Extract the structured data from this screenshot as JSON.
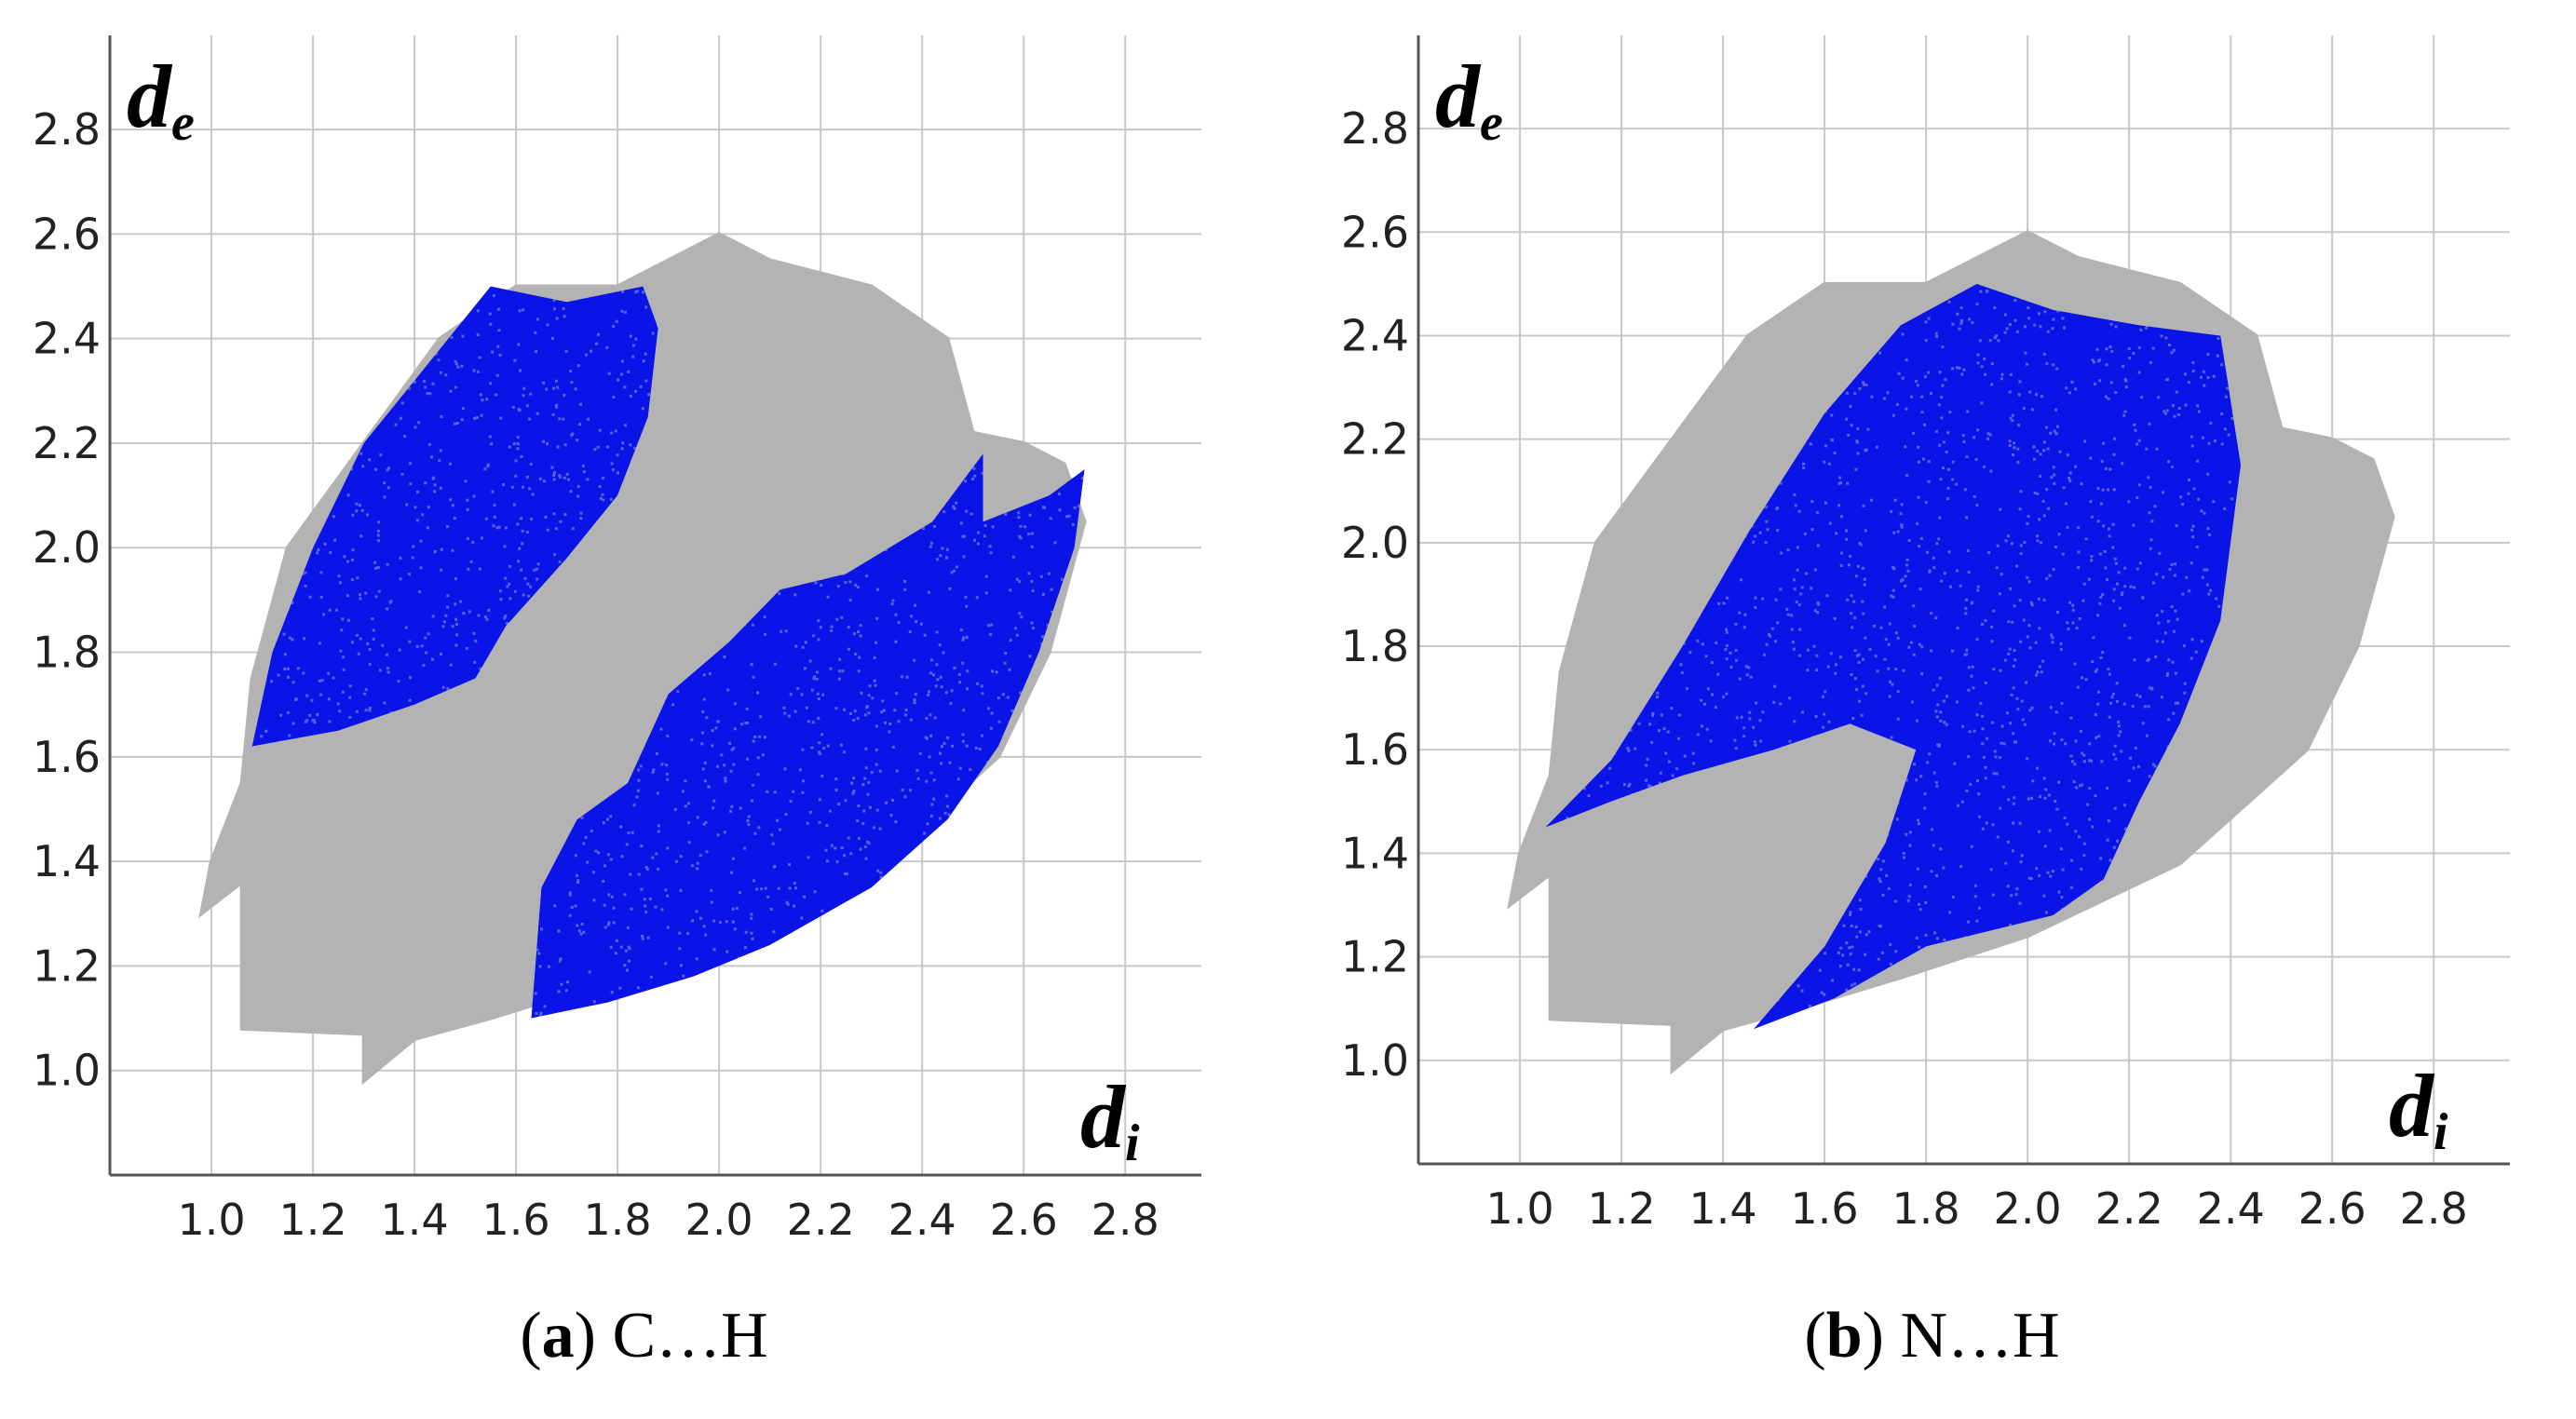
{
  "chart_data": [
    {
      "type": "heatmap",
      "panel_label": "a",
      "title": "C…H",
      "xlabel": "d",
      "xlabel_sub": "i",
      "ylabel": "d",
      "ylabel_sub": "e",
      "xlim": [
        0.8,
        2.95
      ],
      "ylim": [
        0.8,
        2.98
      ],
      "grid": true,
      "x_ticks": [
        1.0,
        1.2,
        1.4,
        1.6,
        1.8,
        2.0,
        2.2,
        2.4,
        2.6,
        2.8
      ],
      "y_ticks": [
        1.0,
        1.2,
        1.4,
        1.6,
        1.8,
        2.0,
        2.2,
        2.4,
        2.6,
        2.8
      ],
      "x_tick_labels": [
        "1.0",
        "1.2",
        "1.4",
        "1.6",
        "1.8",
        "2.0",
        "2.2",
        "2.4",
        "2.6",
        "2.8"
      ],
      "y_tick_labels": [
        "1.0",
        "1.2",
        "1.4",
        "1.6",
        "1.8",
        "2.0",
        "2.2",
        "2.4",
        "2.6",
        "2.8"
      ],
      "colors": {
        "full": "#b3b3b3",
        "highlight": "#0a14e6"
      },
      "full_region": [
        [
          0.98,
          1.3
        ],
        [
          1.06,
          1.36
        ],
        [
          1.06,
          1.08
        ],
        [
          1.3,
          1.07
        ],
        [
          1.3,
          0.98
        ],
        [
          1.4,
          1.06
        ],
        [
          1.55,
          1.1
        ],
        [
          1.75,
          1.16
        ],
        [
          2.0,
          1.24
        ],
        [
          2.3,
          1.38
        ],
        [
          2.55,
          1.6
        ],
        [
          2.65,
          1.8
        ],
        [
          2.72,
          2.05
        ],
        [
          2.68,
          2.16
        ],
        [
          2.6,
          2.2
        ],
        [
          2.5,
          2.22
        ],
        [
          2.45,
          2.4
        ],
        [
          2.3,
          2.5
        ],
        [
          2.1,
          2.55
        ],
        [
          2.0,
          2.6
        ],
        [
          1.9,
          2.55
        ],
        [
          1.8,
          2.5
        ],
        [
          1.6,
          2.5
        ],
        [
          1.45,
          2.4
        ],
        [
          1.3,
          2.2
        ],
        [
          1.15,
          2.0
        ],
        [
          1.08,
          1.75
        ],
        [
          1.06,
          1.55
        ],
        [
          1.0,
          1.4
        ]
      ],
      "highlight_regions": [
        [
          [
            1.08,
            1.62
          ],
          [
            1.12,
            1.8
          ],
          [
            1.2,
            2.0
          ],
          [
            1.3,
            2.2
          ],
          [
            1.45,
            2.38
          ],
          [
            1.55,
            2.5
          ],
          [
            1.7,
            2.47
          ],
          [
            1.85,
            2.5
          ],
          [
            1.88,
            2.42
          ],
          [
            1.86,
            2.25
          ],
          [
            1.8,
            2.1
          ],
          [
            1.7,
            1.98
          ],
          [
            1.58,
            1.85
          ],
          [
            1.52,
            1.75
          ],
          [
            1.4,
            1.7
          ],
          [
            1.25,
            1.65
          ]
        ],
        [
          [
            1.63,
            1.1
          ],
          [
            1.78,
            1.13
          ],
          [
            1.95,
            1.18
          ],
          [
            2.1,
            1.24
          ],
          [
            2.3,
            1.35
          ],
          [
            2.45,
            1.48
          ],
          [
            2.55,
            1.62
          ],
          [
            2.63,
            1.8
          ],
          [
            2.7,
            2.0
          ],
          [
            2.72,
            2.15
          ],
          [
            2.65,
            2.1
          ],
          [
            2.52,
            2.05
          ],
          [
            2.52,
            2.18
          ],
          [
            2.42,
            2.05
          ],
          [
            2.25,
            1.95
          ],
          [
            2.12,
            1.92
          ],
          [
            2.02,
            1.82
          ],
          [
            1.9,
            1.72
          ],
          [
            1.82,
            1.55
          ],
          [
            1.72,
            1.48
          ],
          [
            1.65,
            1.35
          ]
        ]
      ]
    },
    {
      "type": "heatmap",
      "panel_label": "b",
      "title": "N…H",
      "xlabel": "d",
      "xlabel_sub": "i",
      "ylabel": "d",
      "ylabel_sub": "e",
      "xlim": [
        0.8,
        2.95
      ],
      "ylim": [
        0.8,
        2.98
      ],
      "grid": true,
      "x_ticks": [
        1.0,
        1.2,
        1.4,
        1.6,
        1.8,
        2.0,
        2.2,
        2.4,
        2.6,
        2.8
      ],
      "y_ticks": [
        1.0,
        1.2,
        1.4,
        1.6,
        1.8,
        2.0,
        2.2,
        2.4,
        2.6,
        2.8
      ],
      "x_tick_labels": [
        "1.0",
        "1.2",
        "1.4",
        "1.6",
        "1.8",
        "2.0",
        "2.2",
        "2.4",
        "2.6",
        "2.8"
      ],
      "y_tick_labels": [
        "1.0",
        "1.2",
        "1.4",
        "1.6",
        "1.8",
        "2.0",
        "2.2",
        "2.4",
        "2.6",
        "2.8"
      ],
      "colors": {
        "full": "#b3b3b3",
        "highlight": "#0a14e6"
      },
      "full_region": [
        [
          0.98,
          1.3
        ],
        [
          1.06,
          1.36
        ],
        [
          1.06,
          1.08
        ],
        [
          1.3,
          1.07
        ],
        [
          1.3,
          0.98
        ],
        [
          1.4,
          1.06
        ],
        [
          1.55,
          1.1
        ],
        [
          1.75,
          1.16
        ],
        [
          2.0,
          1.24
        ],
        [
          2.3,
          1.38
        ],
        [
          2.55,
          1.6
        ],
        [
          2.65,
          1.8
        ],
        [
          2.72,
          2.05
        ],
        [
          2.68,
          2.16
        ],
        [
          2.6,
          2.2
        ],
        [
          2.5,
          2.22
        ],
        [
          2.45,
          2.4
        ],
        [
          2.3,
          2.5
        ],
        [
          2.1,
          2.55
        ],
        [
          2.0,
          2.6
        ],
        [
          1.9,
          2.55
        ],
        [
          1.8,
          2.5
        ],
        [
          1.6,
          2.5
        ],
        [
          1.45,
          2.4
        ],
        [
          1.3,
          2.2
        ],
        [
          1.15,
          2.0
        ],
        [
          1.08,
          1.75
        ],
        [
          1.06,
          1.55
        ],
        [
          1.0,
          1.4
        ]
      ],
      "highlight_regions": [
        [
          [
            1.05,
            1.45
          ],
          [
            1.18,
            1.58
          ],
          [
            1.32,
            1.8
          ],
          [
            1.45,
            2.02
          ],
          [
            1.6,
            2.25
          ],
          [
            1.75,
            2.42
          ],
          [
            1.9,
            2.5
          ],
          [
            2.05,
            2.45
          ],
          [
            2.22,
            2.42
          ],
          [
            2.38,
            2.4
          ],
          [
            2.42,
            2.15
          ],
          [
            2.38,
            1.85
          ],
          [
            2.3,
            1.65
          ],
          [
            2.22,
            1.5
          ],
          [
            2.15,
            1.35
          ],
          [
            2.05,
            1.28
          ],
          [
            1.8,
            1.22
          ],
          [
            1.62,
            1.12
          ],
          [
            1.46,
            1.06
          ],
          [
            1.6,
            1.22
          ],
          [
            1.72,
            1.42
          ],
          [
            1.78,
            1.6
          ],
          [
            1.65,
            1.65
          ],
          [
            1.5,
            1.6
          ],
          [
            1.32,
            1.55
          ],
          [
            1.18,
            1.5
          ]
        ]
      ]
    }
  ]
}
